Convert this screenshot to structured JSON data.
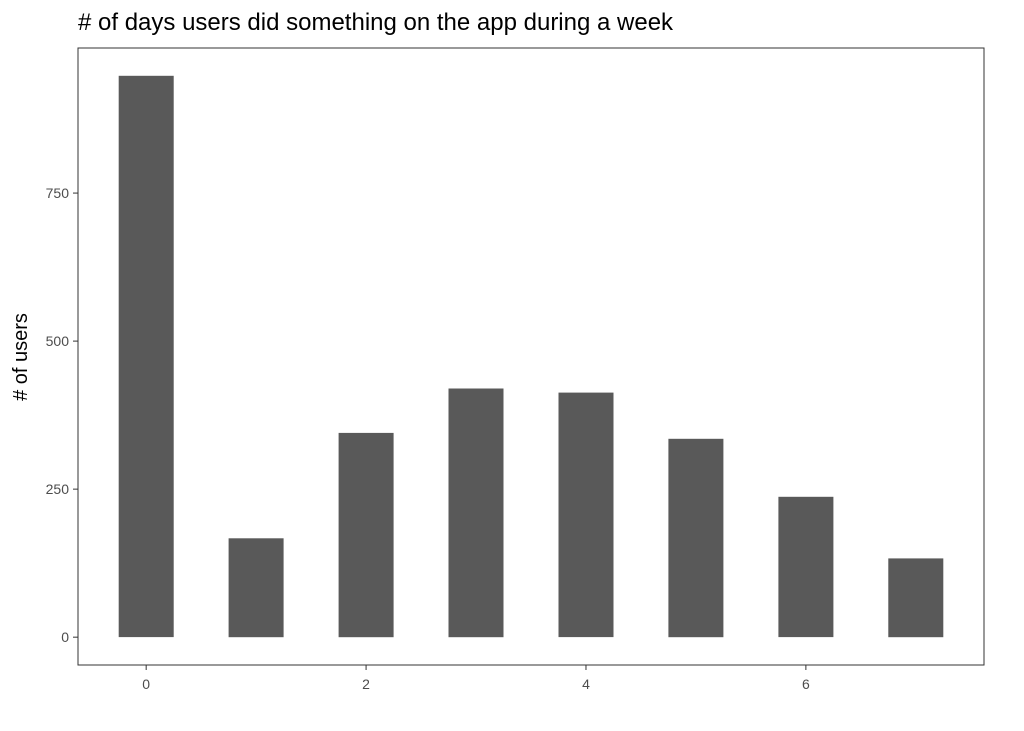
{
  "chart_data": {
    "type": "bar",
    "title": "# of days users did something on the app during a week",
    "xlabel": "",
    "ylabel": "# of users",
    "x": [
      0,
      1,
      2,
      3,
      4,
      5,
      6,
      7
    ],
    "values": [
      948,
      167,
      345,
      420,
      413,
      335,
      237,
      133
    ],
    "xticks": [
      0,
      2,
      4,
      6
    ],
    "yticks": [
      0,
      250,
      500,
      750
    ],
    "xlim": [
      -0.62,
      7.62
    ],
    "ylim": [
      -47,
      995
    ],
    "bar_color": "#595959",
    "grid": false,
    "legend": "none"
  }
}
